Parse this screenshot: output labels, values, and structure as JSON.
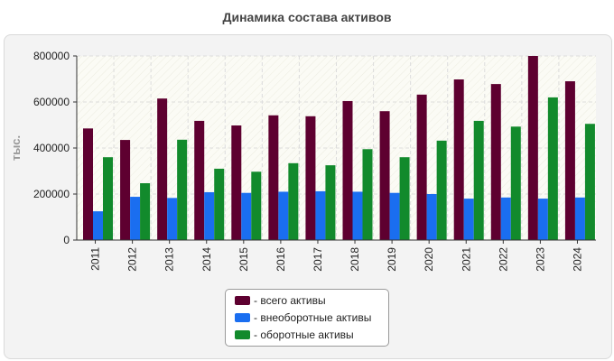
{
  "chart_data": {
    "type": "bar",
    "title": "Динамика состава активов",
    "xlabel": "",
    "ylabel": "тыс.",
    "ylim": [
      0,
      800000
    ],
    "yticks": [
      "0",
      "200000",
      "400000",
      "600000",
      "800000"
    ],
    "categories": [
      "2011",
      "2012",
      "2013",
      "2014",
      "2015",
      "2016",
      "2017",
      "2018",
      "2019",
      "2020",
      "2021",
      "2022",
      "2023",
      "2024"
    ],
    "series": [
      {
        "name": "- всего активы",
        "color": "#5e0030",
        "values": [
          485000,
          435000,
          615000,
          518000,
          498000,
          542000,
          538000,
          604000,
          560000,
          632000,
          698000,
          678000,
          800000,
          690000
        ]
      },
      {
        "name": "- внеоборотные активы",
        "color": "#1a6ef0",
        "values": [
          125000,
          188000,
          183000,
          208000,
          205000,
          210000,
          212000,
          210000,
          205000,
          200000,
          180000,
          185000,
          180000,
          185000
        ]
      },
      {
        "name": "- оборотные активы",
        "color": "#128a2c",
        "values": [
          360000,
          247000,
          436000,
          310000,
          297000,
          334000,
          325000,
          395000,
          360000,
          432000,
          518000,
          493000,
          620000,
          505000
        ]
      }
    ],
    "legend_position": "bottom-center",
    "grid": true
  }
}
